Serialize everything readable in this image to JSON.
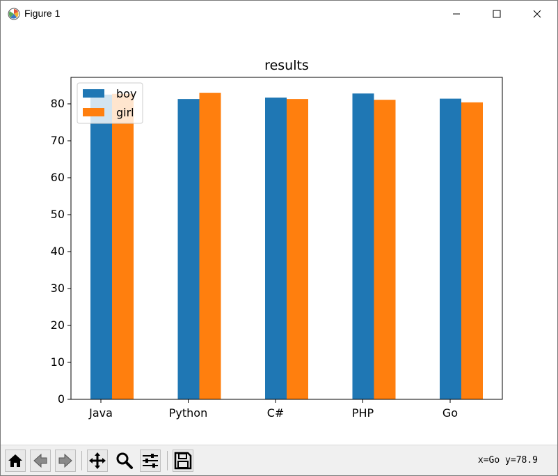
{
  "window": {
    "title": "Figure 1",
    "icons": [
      "matplotlib-icon",
      "minimize-icon",
      "maximize-icon",
      "close-icon"
    ]
  },
  "toolbar": {
    "buttons": [
      "home-icon",
      "back-icon",
      "forward-icon",
      "pan-icon",
      "zoom-icon",
      "configure-subplots-icon",
      "save-icon"
    ],
    "coords": "x=Go y=78.9"
  },
  "chart_data": {
    "type": "bar",
    "title": "results",
    "xlabel": "",
    "ylabel": "",
    "categories": [
      "Java",
      "Python",
      "C#",
      "PHP",
      "Go"
    ],
    "series": [
      {
        "name": "boy",
        "values": [
          82.5,
          81.3,
          81.7,
          82.8,
          81.4
        ],
        "color": "#1f77b4"
      },
      {
        "name": "girl",
        "values": [
          82.7,
          83.0,
          81.3,
          81.1,
          80.4
        ],
        "color": "#ff7f0e"
      }
    ],
    "ylim": [
      0,
      87
    ],
    "yticks": [
      0,
      10,
      20,
      30,
      40,
      50,
      60,
      70,
      80
    ],
    "grid": false,
    "legend": "top-left"
  }
}
